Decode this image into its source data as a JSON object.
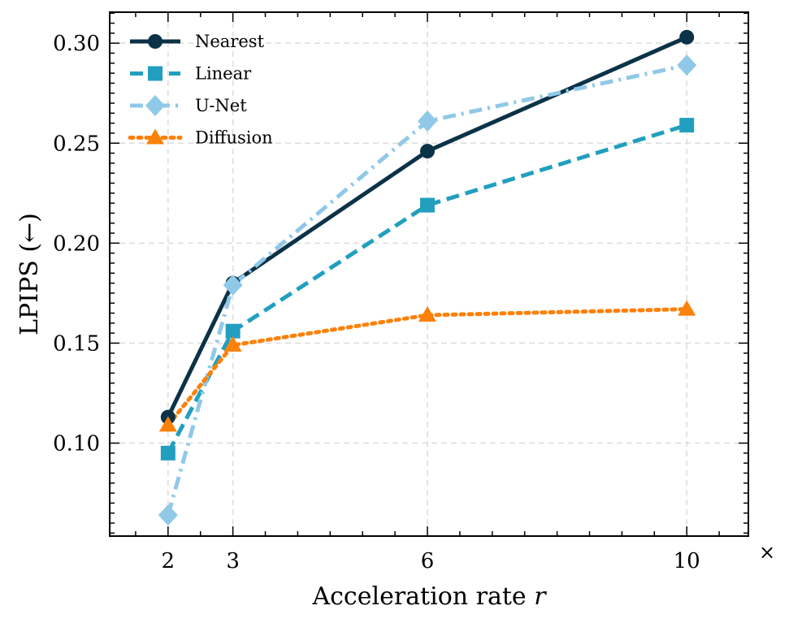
{
  "chart_data": {
    "type": "line",
    "xlabel": "Acceleration rate",
    "xlabel_var": "r",
    "ylabel": "LPIPS (←)",
    "x_unit_suffix": "×",
    "x": [
      2,
      3,
      6,
      10
    ],
    "x_ticks": [
      2,
      3,
      6,
      10
    ],
    "x_tick_labels": [
      "2",
      "3",
      "6",
      "10"
    ],
    "xlim": [
      1.1,
      10.95
    ],
    "ylim": [
      0.0535,
      0.3155
    ],
    "y_ticks": [
      0.1,
      0.15,
      0.2,
      0.25,
      0.3
    ],
    "y_tick_labels": [
      "0.10",
      "0.15",
      "0.20",
      "0.25",
      "0.30"
    ],
    "grid": true,
    "legend_position": "top-left",
    "series": [
      {
        "name": "Nearest",
        "values": [
          0.113,
          0.18,
          0.246,
          0.303
        ],
        "color": "#0b3247",
        "marker": "circle",
        "line_style": "solid"
      },
      {
        "name": "Linear",
        "values": [
          0.095,
          0.156,
          0.219,
          0.259
        ],
        "color": "#229fbf",
        "marker": "square",
        "line_style": "dashed"
      },
      {
        "name": "U-Net",
        "values": [
          0.064,
          0.179,
          0.261,
          0.289
        ],
        "color": "#90c9e8",
        "marker": "diamond",
        "line_style": "dashdot"
      },
      {
        "name": "Diffusion",
        "values": [
          0.109,
          0.149,
          0.164,
          0.167
        ],
        "color": "#fc8109",
        "marker": "triangle",
        "line_style": "dotted"
      }
    ]
  }
}
